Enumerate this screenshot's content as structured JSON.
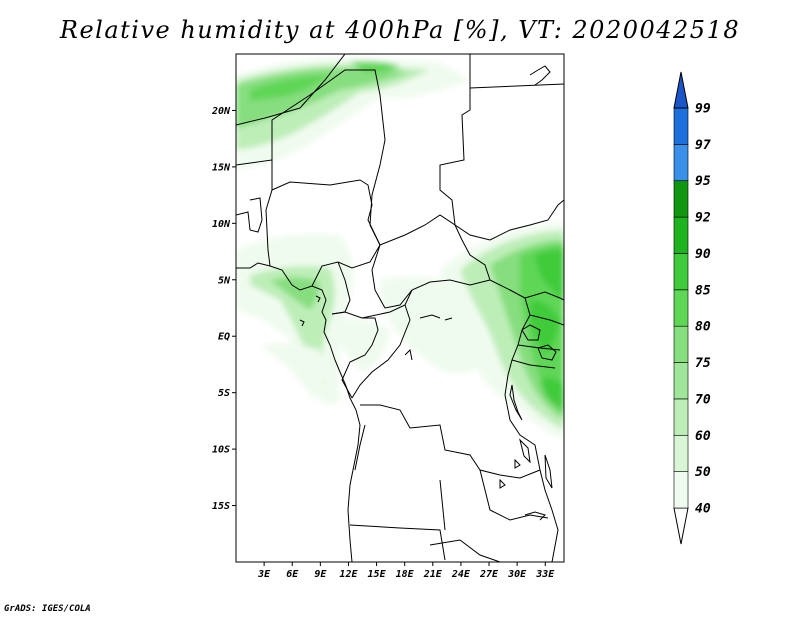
{
  "title": "Relative humidity at 400hPa [%], VT: 2020042518",
  "footer": "GrADS: IGES/COLA",
  "map": {
    "lon_range": [
      0,
      35
    ],
    "lat_range": [
      -20,
      25
    ],
    "lat_ticks": [
      {
        "value": 20,
        "label": "20N"
      },
      {
        "value": 15,
        "label": "15N"
      },
      {
        "value": 10,
        "label": "10N"
      },
      {
        "value": 5,
        "label": "5N"
      },
      {
        "value": 0,
        "label": "EQ"
      },
      {
        "value": -5,
        "label": "5S"
      },
      {
        "value": -10,
        "label": "10S"
      },
      {
        "value": -15,
        "label": "15S"
      }
    ],
    "lon_ticks": [
      {
        "value": 3,
        "label": "3E"
      },
      {
        "value": 6,
        "label": "6E"
      },
      {
        "value": 9,
        "label": "9E"
      },
      {
        "value": 12,
        "label": "12E"
      },
      {
        "value": 15,
        "label": "15E"
      },
      {
        "value": 18,
        "label": "18E"
      },
      {
        "value": 21,
        "label": "21E"
      },
      {
        "value": 24,
        "label": "24E"
      },
      {
        "value": 27,
        "label": "27E"
      },
      {
        "value": 30,
        "label": "30E"
      },
      {
        "value": 33,
        "label": "33E"
      }
    ]
  },
  "colorbar": {
    "levels": [
      {
        "label": "40",
        "color": "#f0fbef"
      },
      {
        "label": "50",
        "color": "#d8f5d5"
      },
      {
        "label": "60",
        "color": "#bdeeb8"
      },
      {
        "label": "70",
        "color": "#a0e69a"
      },
      {
        "label": "75",
        "color": "#86de7e"
      },
      {
        "label": "80",
        "color": "#5fd656"
      },
      {
        "label": "85",
        "color": "#3fcb3b"
      },
      {
        "label": "90",
        "color": "#1fb41f"
      },
      {
        "label": "92",
        "color": "#119611"
      },
      {
        "label": "95",
        "color": "#3a8fe8"
      },
      {
        "label": "97",
        "color": "#1c6fdc"
      },
      {
        "label": "99",
        "color": "#1a55c9"
      }
    ],
    "below_color": "#ffffff",
    "above_color": "#1a55c9"
  }
}
